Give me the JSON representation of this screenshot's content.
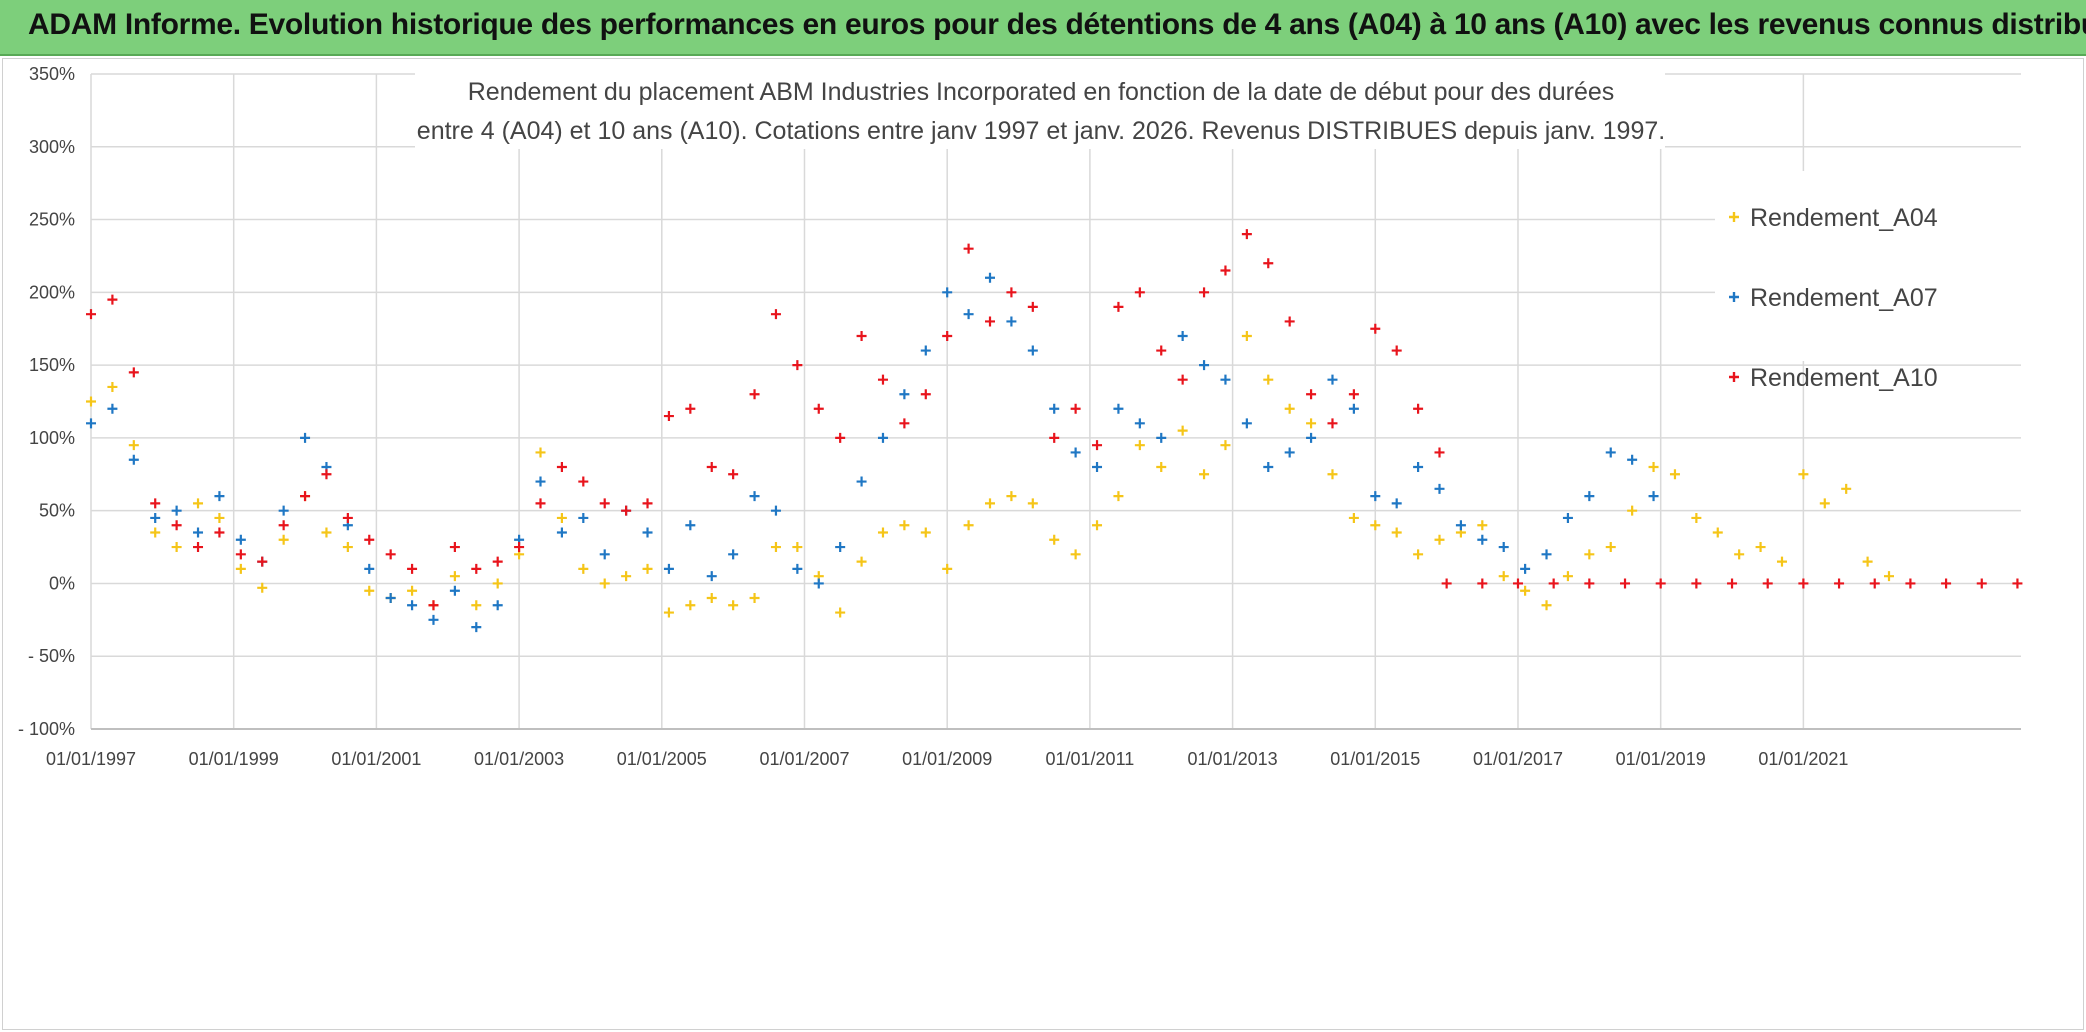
{
  "header": {
    "title": "ADAM Informe. Evolution historique des performances en euros pour des détentions de 4 ans (A04) à 10 ans (A10) avec les revenus connus distribués"
  },
  "chart_data": {
    "type": "scatter",
    "title_line1": "Rendement du placement ABM Industries Incorporated en fonction de la date de début pour des durées",
    "title_line2": "entre 4 (A04) et 10 ans (A10). Cotations entre janv 1997 et janv. 2026. Revenus DISTRIBUES depuis janv. 1997.",
    "xlabel": "",
    "ylabel": "",
    "xlim": [
      1997.0,
      2024.05
    ],
    "ylim": [
      -100,
      350
    ],
    "x_ticks": [
      {
        "x": 1997,
        "label": "01/01/1997"
      },
      {
        "x": 1999,
        "label": "01/01/1999"
      },
      {
        "x": 2001,
        "label": "01/01/2001"
      },
      {
        "x": 2003,
        "label": "01/01/2003"
      },
      {
        "x": 2005,
        "label": "01/01/2005"
      },
      {
        "x": 2007,
        "label": "01/01/2007"
      },
      {
        "x": 2009,
        "label": "01/01/2009"
      },
      {
        "x": 2011,
        "label": "01/01/2011"
      },
      {
        "x": 2013,
        "label": "01/01/2013"
      },
      {
        "x": 2015,
        "label": "01/01/2015"
      },
      {
        "x": 2017,
        "label": "01/01/2017"
      },
      {
        "x": 2019,
        "label": "01/01/2019"
      },
      {
        "x": 2021,
        "label": "01/01/2021"
      }
    ],
    "y_ticks": [
      {
        "y": 350,
        "label": "350%"
      },
      {
        "y": 300,
        "label": "300%"
      },
      {
        "y": 250,
        "label": "250%"
      },
      {
        "y": 200,
        "label": "200%"
      },
      {
        "y": 150,
        "label": "150%"
      },
      {
        "y": 100,
        "label": "100%"
      },
      {
        "y": 50,
        "label": "50%"
      },
      {
        "y": 0,
        "label": "0%"
      },
      {
        "y": -50,
        "label": "- 50%"
      },
      {
        "y": -100,
        "label": "- 100%"
      }
    ],
    "legend_position": "top-right",
    "series": [
      {
        "name": "Rendement_A04",
        "color": "#f5c518",
        "marker": "+",
        "x": [
          1997.0,
          1997.3,
          1997.6,
          1997.9,
          1998.2,
          1998.5,
          1998.8,
          1999.1,
          1999.4,
          1999.7,
          2000.0,
          2000.3,
          2000.6,
          2000.9,
          2001.2,
          2001.5,
          2001.8,
          2002.1,
          2002.4,
          2002.7,
          2003.0,
          2003.3,
          2003.6,
          2003.9,
          2004.2,
          2004.5,
          2004.8,
          2005.1,
          2005.4,
          2005.7,
          2006.0,
          2006.3,
          2006.6,
          2006.9,
          2007.2,
          2007.5,
          2007.8,
          2008.1,
          2008.4,
          2008.7,
          2009.0,
          2009.3,
          2009.6,
          2009.9,
          2010.2,
          2010.5,
          2010.8,
          2011.1,
          2011.4,
          2011.7,
          2012.0,
          2012.3,
          2012.6,
          2012.9,
          2013.2,
          2013.5,
          2013.8,
          2014.1,
          2014.4,
          2014.7,
          2015.0,
          2015.3,
          2015.6,
          2015.9,
          2016.2,
          2016.5,
          2016.8,
          2017.1,
          2017.4,
          2017.7,
          2018.0,
          2018.3,
          2018.6,
          2018.9,
          2019.2,
          2019.5,
          2019.8,
          2020.1,
          2020.4,
          2020.7,
          2021.0,
          2021.3,
          2021.6,
          2021.9,
          2022.2
        ],
        "y": [
          125,
          135,
          95,
          35,
          25,
          55,
          45,
          10,
          -3,
          30,
          60,
          35,
          25,
          -5,
          -10,
          -5,
          -15,
          5,
          -15,
          0,
          20,
          90,
          45,
          10,
          0,
          5,
          10,
          -20,
          -15,
          -10,
          -15,
          -10,
          25,
          25,
          5,
          -20,
          15,
          35,
          40,
          35,
          10,
          40,
          55,
          60,
          55,
          30,
          20,
          40,
          60,
          95,
          80,
          105,
          75,
          95,
          170,
          140,
          120,
          110,
          75,
          45,
          40,
          35,
          20,
          30,
          35,
          40,
          5,
          -5,
          -15,
          5,
          20,
          25,
          50,
          80,
          75,
          45,
          35,
          20,
          25,
          15,
          75,
          55,
          65,
          15,
          5
        ]
      },
      {
        "name": "Rendement_A07",
        "color": "#1f77c4",
        "marker": "+",
        "x": [
          1997.0,
          1997.3,
          1997.6,
          1997.9,
          1998.2,
          1998.5,
          1998.8,
          1999.1,
          1999.4,
          1999.7,
          2000.0,
          2000.3,
          2000.6,
          2000.9,
          2001.2,
          2001.5,
          2001.8,
          2002.1,
          2002.4,
          2002.7,
          2003.0,
          2003.3,
          2003.6,
          2003.9,
          2004.2,
          2004.5,
          2004.8,
          2005.1,
          2005.4,
          2005.7,
          2006.0,
          2006.3,
          2006.6,
          2006.9,
          2007.2,
          2007.5,
          2007.8,
          2008.1,
          2008.4,
          2008.7,
          2009.0,
          2009.3,
          2009.6,
          2009.9,
          2010.2,
          2010.5,
          2010.8,
          2011.1,
          2011.4,
          2011.7,
          2012.0,
          2012.3,
          2012.6,
          2012.9,
          2013.2,
          2013.5,
          2013.8,
          2014.1,
          2014.4,
          2014.7,
          2015.0,
          2015.3,
          2015.6,
          2015.9,
          2016.2,
          2016.5,
          2016.8,
          2017.1,
          2017.4,
          2017.7,
          2018.0,
          2018.3,
          2018.6,
          2018.9
        ],
        "y": [
          110,
          120,
          85,
          45,
          50,
          35,
          60,
          30,
          15,
          50,
          100,
          80,
          40,
          10,
          -10,
          -15,
          -25,
          -5,
          -30,
          -15,
          30,
          70,
          35,
          45,
          20,
          50,
          35,
          10,
          40,
          5,
          20,
          60,
          50,
          10,
          0,
          25,
          70,
          100,
          130,
          160,
          200,
          185,
          210,
          180,
          160,
          120,
          90,
          80,
          120,
          110,
          100,
          170,
          150,
          140,
          110,
          80,
          90,
          100,
          140,
          120,
          60,
          55,
          80,
          65,
          40,
          30,
          25,
          10,
          20,
          45,
          60,
          90,
          85,
          60
        ]
      },
      {
        "name": "Rendement_A10",
        "color": "#e8141c",
        "marker": "+",
        "x": [
          1997.0,
          1997.3,
          1997.6,
          1997.9,
          1998.2,
          1998.5,
          1998.8,
          1999.1,
          1999.4,
          1999.7,
          2000.0,
          2000.3,
          2000.6,
          2000.9,
          2001.2,
          2001.5,
          2001.8,
          2002.1,
          2002.4,
          2002.7,
          2003.0,
          2003.3,
          2003.6,
          2003.9,
          2004.2,
          2004.5,
          2004.8,
          2005.1,
          2005.4,
          2005.7,
          2006.0,
          2006.3,
          2006.6,
          2006.9,
          2007.2,
          2007.5,
          2007.8,
          2008.1,
          2008.4,
          2008.7,
          2009.0,
          2009.3,
          2009.6,
          2009.9,
          2010.2,
          2010.5,
          2010.8,
          2011.1,
          2011.4,
          2011.7,
          2012.0,
          2012.3,
          2012.6,
          2012.9,
          2013.2,
          2013.5,
          2013.8,
          2014.1,
          2014.4,
          2014.7,
          2015.0,
          2015.3,
          2015.6,
          2015.9,
          2016.0,
          2016.5,
          2017.0,
          2017.5,
          2018.0,
          2018.5,
          2019.0,
          2019.5,
          2020.0,
          2020.5,
          2021.0,
          2021.5,
          2022.0,
          2022.5,
          2023.0,
          2023.5,
          2024.0
        ],
        "y": [
          185,
          195,
          145,
          55,
          40,
          25,
          35,
          20,
          15,
          40,
          60,
          75,
          45,
          30,
          20,
          10,
          -15,
          25,
          10,
          15,
          25,
          55,
          80,
          70,
          55,
          50,
          55,
          115,
          120,
          80,
          75,
          130,
          185,
          150,
          120,
          100,
          170,
          140,
          110,
          130,
          170,
          230,
          180,
          200,
          190,
          100,
          120,
          95,
          190,
          200,
          160,
          140,
          200,
          215,
          240,
          220,
          180,
          130,
          110,
          130,
          175,
          160,
          120,
          90,
          0,
          0,
          0,
          0,
          0,
          0,
          0,
          0,
          0,
          0,
          0,
          0,
          0,
          0,
          0,
          0,
          0
        ]
      }
    ]
  }
}
